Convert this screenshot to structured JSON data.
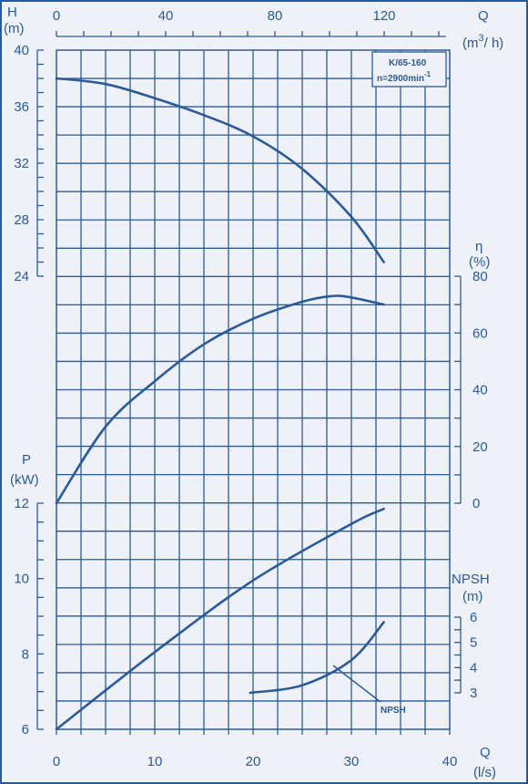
{
  "chart_data": {
    "type": "line",
    "model_label": "K/65-160",
    "speed_label": "n=2900min",
    "speed_exponent": "-1",
    "colors": {
      "ink": "#2c5a96",
      "background": "#eef2f8"
    },
    "axes": {
      "q_top": {
        "label": "Q",
        "unit": "(m",
        "unit_exp": "3",
        "unit_end": "/ h)",
        "ticks": [
          "0",
          "40",
          "80",
          "120"
        ],
        "range": [
          0,
          144
        ]
      },
      "q_bottom": {
        "label": "Q",
        "unit": "(l/s)",
        "ticks": [
          "0",
          "10",
          "20",
          "30",
          "40"
        ],
        "range": [
          0,
          40
        ]
      },
      "head": {
        "label": "H",
        "unit": "(m)",
        "ticks": [
          "24",
          "28",
          "32",
          "36",
          "40"
        ],
        "range": [
          24,
          40
        ]
      },
      "efficiency": {
        "label": "η",
        "unit": "(%)",
        "ticks": [
          "0",
          "20",
          "40",
          "60",
          "80"
        ],
        "range": [
          0,
          80
        ]
      },
      "power": {
        "label": "P",
        "unit": "(kW)",
        "ticks": [
          "6",
          "8",
          "10",
          "12"
        ],
        "range": [
          6,
          12
        ]
      },
      "npsh": {
        "label": "NPSH",
        "unit": "(m)",
        "ticks": [
          "3",
          "4",
          "5",
          "6"
        ],
        "range": [
          3,
          6
        ]
      }
    },
    "series": [
      {
        "axis": "head",
        "x": [
          0,
          5,
          10,
          15,
          20,
          25,
          30,
          33.3
        ],
        "y": [
          38,
          37.6,
          36.6,
          35.4,
          33.9,
          31.6,
          28.2,
          25
        ]
      },
      {
        "axis": "efficiency",
        "x": [
          0,
          5,
          10,
          15,
          20,
          25,
          28,
          30,
          33.3
        ],
        "y": [
          0,
          27,
          43,
          56,
          65,
          71,
          73,
          72.5,
          70
        ]
      },
      {
        "axis": "power",
        "x": [
          0,
          10,
          20,
          30,
          33.3
        ],
        "y": [
          6,
          8.05,
          9.95,
          11.45,
          11.85
        ]
      },
      {
        "axis": "npsh",
        "x": [
          19.7,
          25,
          30,
          33.3
        ],
        "y": [
          3,
          3.3,
          4.3,
          5.8
        ]
      }
    ],
    "npsh_callout": "NPSH",
    "grid": true
  }
}
